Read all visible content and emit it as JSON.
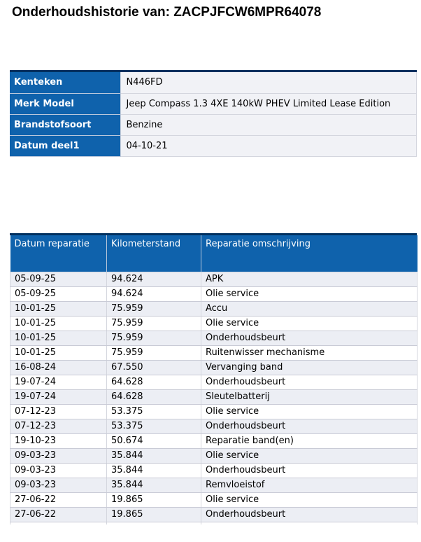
{
  "title": "Onderhoudshistorie van: ZACPJFCW6MPR64078",
  "vehicle_info": {
    "rows": [
      {
        "label": "Kenteken",
        "value": "N446FD"
      },
      {
        "label": "Merk Model",
        "value": "Jeep Compass 1.3 4XE 140kW PHEV Limited Lease Edition"
      },
      {
        "label": "Brandstofsoort",
        "value": "Benzine"
      },
      {
        "label": "Datum deel1",
        "value": "04-10-21"
      }
    ]
  },
  "repairs": {
    "headers": {
      "datum": "Datum reparatie",
      "km": "Kilometerstand",
      "omschrijving": "Reparatie omschrijving"
    },
    "rows": [
      {
        "datum": "05-09-25",
        "km": "94.624",
        "omschrijving": "APK"
      },
      {
        "datum": "05-09-25",
        "km": "94.624",
        "omschrijving": "Olie service"
      },
      {
        "datum": "10-01-25",
        "km": "75.959",
        "omschrijving": "Accu"
      },
      {
        "datum": "10-01-25",
        "km": "75.959",
        "omschrijving": "Olie service"
      },
      {
        "datum": "10-01-25",
        "km": "75.959",
        "omschrijving": "Onderhoudsbeurt"
      },
      {
        "datum": "10-01-25",
        "km": "75.959",
        "omschrijving": "Ruitenwisser mechanisme"
      },
      {
        "datum": "16-08-24",
        "km": "67.550",
        "omschrijving": "Vervanging band"
      },
      {
        "datum": "19-07-24",
        "km": "64.628",
        "omschrijving": "Onderhoudsbeurt"
      },
      {
        "datum": "19-07-24",
        "km": "64.628",
        "omschrijving": "Sleutelbatterij"
      },
      {
        "datum": "07-12-23",
        "km": "53.375",
        "omschrijving": "Olie service"
      },
      {
        "datum": "07-12-23",
        "km": "53.375",
        "omschrijving": "Onderhoudsbeurt"
      },
      {
        "datum": "19-10-23",
        "km": "50.674",
        "omschrijving": "Reparatie band(en)"
      },
      {
        "datum": "09-03-23",
        "km": "35.844",
        "omschrijving": "Olie service"
      },
      {
        "datum": "09-03-23",
        "km": "35.844",
        "omschrijving": "Onderhoudsbeurt"
      },
      {
        "datum": "09-03-23",
        "km": "35.844",
        "omschrijving": "Remvloeistof"
      },
      {
        "datum": "27-06-22",
        "km": "19.865",
        "omschrijving": "Olie service"
      },
      {
        "datum": "27-06-22",
        "km": "19.865",
        "omschrijving": "Onderhoudsbeurt"
      }
    ]
  },
  "colors": {
    "header_blue": "#0f62ac",
    "table_top_border": "#00305f",
    "stripe_gray": "#eceef4",
    "grid_line": "#d4d6de",
    "info_value_bg": "#f1f2f6",
    "header_separator": "#b9c7db",
    "text": "#000000",
    "header_text": "#ffffff"
  }
}
